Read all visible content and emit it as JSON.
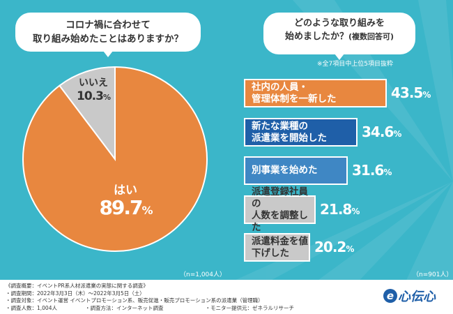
{
  "colors": {
    "background": "#3bb6c9",
    "orange": "#e8873f",
    "navy": "#1f5fa8",
    "blue": "#3f87c4",
    "gray": "#c9c9c9"
  },
  "left_question": {
    "line1": "コロナ禍に合わせて",
    "line2": "取り組み始めたことはありますか？"
  },
  "right_question": {
    "line1": "どのような取り組みを",
    "line2": "始めましたか？",
    "line2_suffix": "(複数回答可)"
  },
  "note": "※全7項目中上位5項目抜粋",
  "chart_data": [
    {
      "type": "pie",
      "title": "コロナ禍に合わせて取り組み始めたことはありますか？",
      "slices": [
        {
          "label": "はい",
          "value": 89.7,
          "display": "89.7",
          "unit": "%",
          "color": "#e8873f"
        },
        {
          "label": "いいえ",
          "value": 10.3,
          "display": "10.3",
          "unit": "%",
          "color": "#c9c9c9"
        }
      ],
      "n": "（n=1,004人）"
    },
    {
      "type": "bar",
      "orientation": "horizontal",
      "title": "どのような取り組みを始めましたか？(複数回答可)",
      "xlim": [
        0,
        43.5
      ],
      "bars": [
        {
          "line1": "社内の人員・",
          "line2": "管理体制を一新した",
          "value": 43.5,
          "display": "43.5",
          "unit": "%",
          "color": "#e8873f"
        },
        {
          "line1": "新たな業種の",
          "line2": "派遣業を開始した",
          "value": 34.6,
          "display": "34.6",
          "unit": "%",
          "color": "#1f5fa8"
        },
        {
          "line1": "別事業を始めた",
          "line2": "",
          "value": 31.6,
          "display": "31.6",
          "unit": "%",
          "color": "#3f87c4"
        },
        {
          "line1": "派遣登録社員の",
          "line2": "人数を調整した",
          "value": 21.8,
          "display": "21.8",
          "unit": "%",
          "color": "#c9c9c9"
        },
        {
          "line1": "派遣料金を値下げした",
          "line2": "",
          "value": 20.2,
          "display": "20.2",
          "unit": "%",
          "color": "#c9c9c9"
        }
      ],
      "n": "（n=901人）"
    }
  ],
  "footer": {
    "line1": "《調査概要：イベントPR系人材派遣業の実態に関する調査》",
    "line2": "・調査期間：2022年3月3日（木）～2022年3月5日（土）",
    "line3": "・調査対象：イベント運営 イベントプロモーション系、販売促進・販売プロモーション系の派遣業（管理職）",
    "line4_a": "・調査人数：1,004人",
    "line4_b": "・調査方法：インターネット調査",
    "line4_c": "・モニター提供元：ゼネラルリサーチ"
  },
  "logo": {
    "mark": "e",
    "text": "心伝心"
  }
}
